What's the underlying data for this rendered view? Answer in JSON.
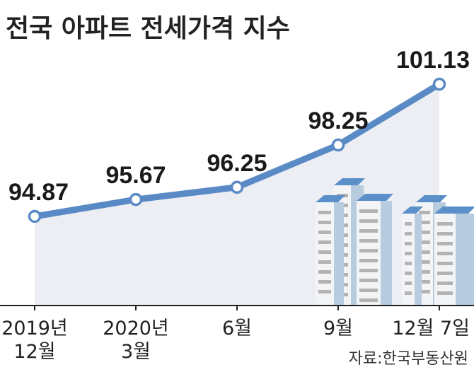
{
  "title": "전국 아파트 전세가격 지수",
  "source": "자료:한국부동산원",
  "colors": {
    "line": "#5a8ac5",
    "area": "#eceef4",
    "marker_fill": "#ffffff",
    "axis": "#222222",
    "building_light": "#f2f4f6",
    "building_shade": "#b8cce0",
    "building_roof": "#5b8fc9",
    "window": "#b3b3b3"
  },
  "chart_data": {
    "type": "line",
    "title": "전국 아파트 전세가격 지수",
    "categories": [
      "2019년 12월",
      "2020년 3월",
      "6월",
      "9월",
      "12월 7일"
    ],
    "tick_lines": [
      [
        "2019년",
        "12월"
      ],
      [
        "2020년",
        "3월"
      ],
      [
        "6월"
      ],
      [
        "9월"
      ],
      [
        "12월 7일"
      ]
    ],
    "x_positions": [
      0,
      3,
      6,
      9,
      12
    ],
    "values": [
      94.87,
      95.67,
      96.25,
      98.25,
      101.13
    ],
    "data_labels": [
      "94.87",
      "95.67",
      "96.25",
      "98.25",
      "101.13"
    ],
    "xlabel": "",
    "ylabel": "",
    "grid": false,
    "legend": "none"
  }
}
